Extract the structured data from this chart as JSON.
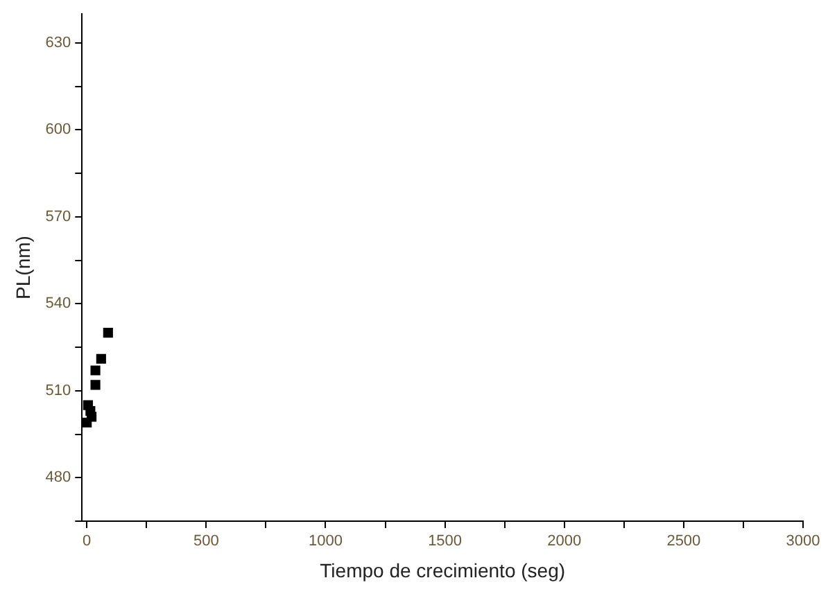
{
  "chart_data": {
    "type": "scatter",
    "xlabel": "Tiempo de crecimiento (seg)",
    "ylabel": "PL(nm)",
    "x": [
      0,
      5,
      10,
      15,
      20,
      36,
      36,
      60,
      89
    ],
    "values": [
      499,
      505,
      null,
      503,
      501,
      512,
      517,
      521,
      530
    ],
    "color": "#000000",
    "marker": "square",
    "grid": false,
    "legend": false,
    "xlim": [
      -20,
      3000
    ],
    "ylim": [
      465,
      640
    ],
    "xticks": [
      0,
      {
        "value": 250,
        "label": null
      },
      500,
      {
        "value": 750,
        "label": null
      },
      1000,
      {
        "value": 1250,
        "label": null
      },
      1500,
      {
        "value": 1750,
        "label": null
      },
      2000,
      {
        "value": 2250,
        "label": null
      },
      2500,
      {
        "value": 2750,
        "label": null
      },
      3000
    ],
    "yticks": [
      {
        "value": 465,
        "label": null
      },
      480,
      {
        "value": 495,
        "label": null
      },
      510,
      {
        "value": 525,
        "label": null
      },
      540,
      {
        "value": 555,
        "label": null
      },
      570,
      {
        "value": 585,
        "label": null
      },
      600,
      {
        "value": 615,
        "label": null
      },
      630
    ]
  }
}
